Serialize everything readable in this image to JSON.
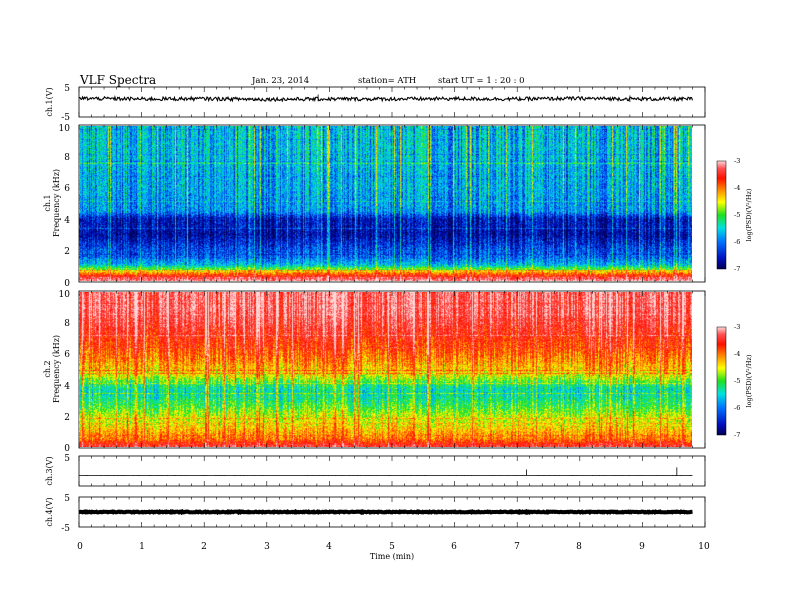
{
  "header": {
    "title": "VLF  Spectra",
    "date": "Jan. 23, 2014",
    "station": "station= ATH",
    "start": "start  UT  =   1  : 20 : 0"
  },
  "colors": {
    "spectrogram_scale": [
      "#000050",
      "#0010c0",
      "#0070ff",
      "#00e0e0",
      "#20e020",
      "#ffff00",
      "#ff8000",
      "#ff1000",
      "#ff5050",
      "#ffd8d8"
    ],
    "trace": "#000000"
  },
  "chart_data": [
    {
      "type": "line",
      "panel": "ch1_waveform",
      "ylabel": "ch.1(V)",
      "ylim": [
        -5,
        5
      ],
      "y_ticks": [
        "5",
        "-5"
      ],
      "x": [
        0,
        1,
        2,
        3,
        4,
        5,
        6,
        7,
        8,
        9,
        9.8
      ],
      "values": [
        1.2,
        1.0,
        1.1,
        0.9,
        1.0,
        1.0,
        1.1,
        1.0,
        1.2,
        1.0,
        1.0
      ]
    },
    {
      "type": "heatmap",
      "panel": "ch1_spectrogram",
      "ylabel": "ch.1\nFrequency (kHz)",
      "ylim": [
        0,
        10
      ],
      "y_ticks": [
        "0",
        "2",
        "4",
        "6",
        "8",
        "10"
      ],
      "x_range_min": [
        0,
        9.8
      ],
      "colorbar": {
        "label": "log(PSD)(V²/Hz)",
        "range": [
          -7,
          -3
        ],
        "ticks": [
          "-3",
          "-4",
          "-5",
          "-6",
          "-7"
        ]
      },
      "freq_profile_kHz": [
        0,
        0.5,
        1,
        1.5,
        2,
        2.5,
        3,
        3.5,
        4,
        4.5,
        5,
        6,
        7,
        8,
        9,
        10
      ],
      "logpsd_profile": [
        -3.2,
        -4.4,
        -5.8,
        -6.2,
        -6.3,
        -6.5,
        -6.7,
        -6.6,
        -6.6,
        -6.0,
        -6.0,
        -5.9,
        -5.9,
        -5.8,
        -5.8,
        -5.8
      ]
    },
    {
      "type": "heatmap",
      "panel": "ch2_spectrogram",
      "ylabel": "ch.2\nFrequency (kHz)",
      "ylim": [
        0,
        10
      ],
      "y_ticks": [
        "0",
        "2",
        "4",
        "6",
        "8",
        "10"
      ],
      "x_range_min": [
        0,
        9.8
      ],
      "colorbar": {
        "label": "log(PSD)(V²/Hz)",
        "range": [
          -7,
          -3
        ],
        "ticks": [
          "-3",
          "-4",
          "-5",
          "-6",
          "-7"
        ]
      },
      "freq_profile_kHz": [
        0,
        0.5,
        1,
        1.5,
        2,
        2.5,
        3,
        3.5,
        4,
        4.5,
        5,
        6,
        7,
        8,
        9,
        10
      ],
      "logpsd_profile": [
        -3.6,
        -4.3,
        -4.5,
        -4.8,
        -4.9,
        -5.2,
        -5.4,
        -5.6,
        -5.4,
        -4.9,
        -4.6,
        -4.2,
        -3.9,
        -3.6,
        -3.4,
        -3.4
      ]
    },
    {
      "type": "line",
      "panel": "ch3_waveform",
      "ylabel": "ch.3(V)",
      "ylim": [
        -5,
        5
      ],
      "y_ticks": [
        "5"
      ],
      "x": [
        0,
        9.8
      ],
      "values": [
        -1.5,
        -1.5
      ]
    },
    {
      "type": "line",
      "panel": "ch4_waveform",
      "ylabel": "ch.4(V)",
      "ylim": [
        -5,
        5
      ],
      "y_ticks": [
        "5",
        "-5"
      ],
      "x": [
        0,
        9.8
      ],
      "values": [
        0,
        0
      ]
    }
  ],
  "x_axis": {
    "label": "Time  (min)",
    "range": [
      0,
      10
    ],
    "ticks": [
      "0",
      "1",
      "2",
      "3",
      "4",
      "5",
      "6",
      "7",
      "8",
      "9",
      "10"
    ]
  }
}
